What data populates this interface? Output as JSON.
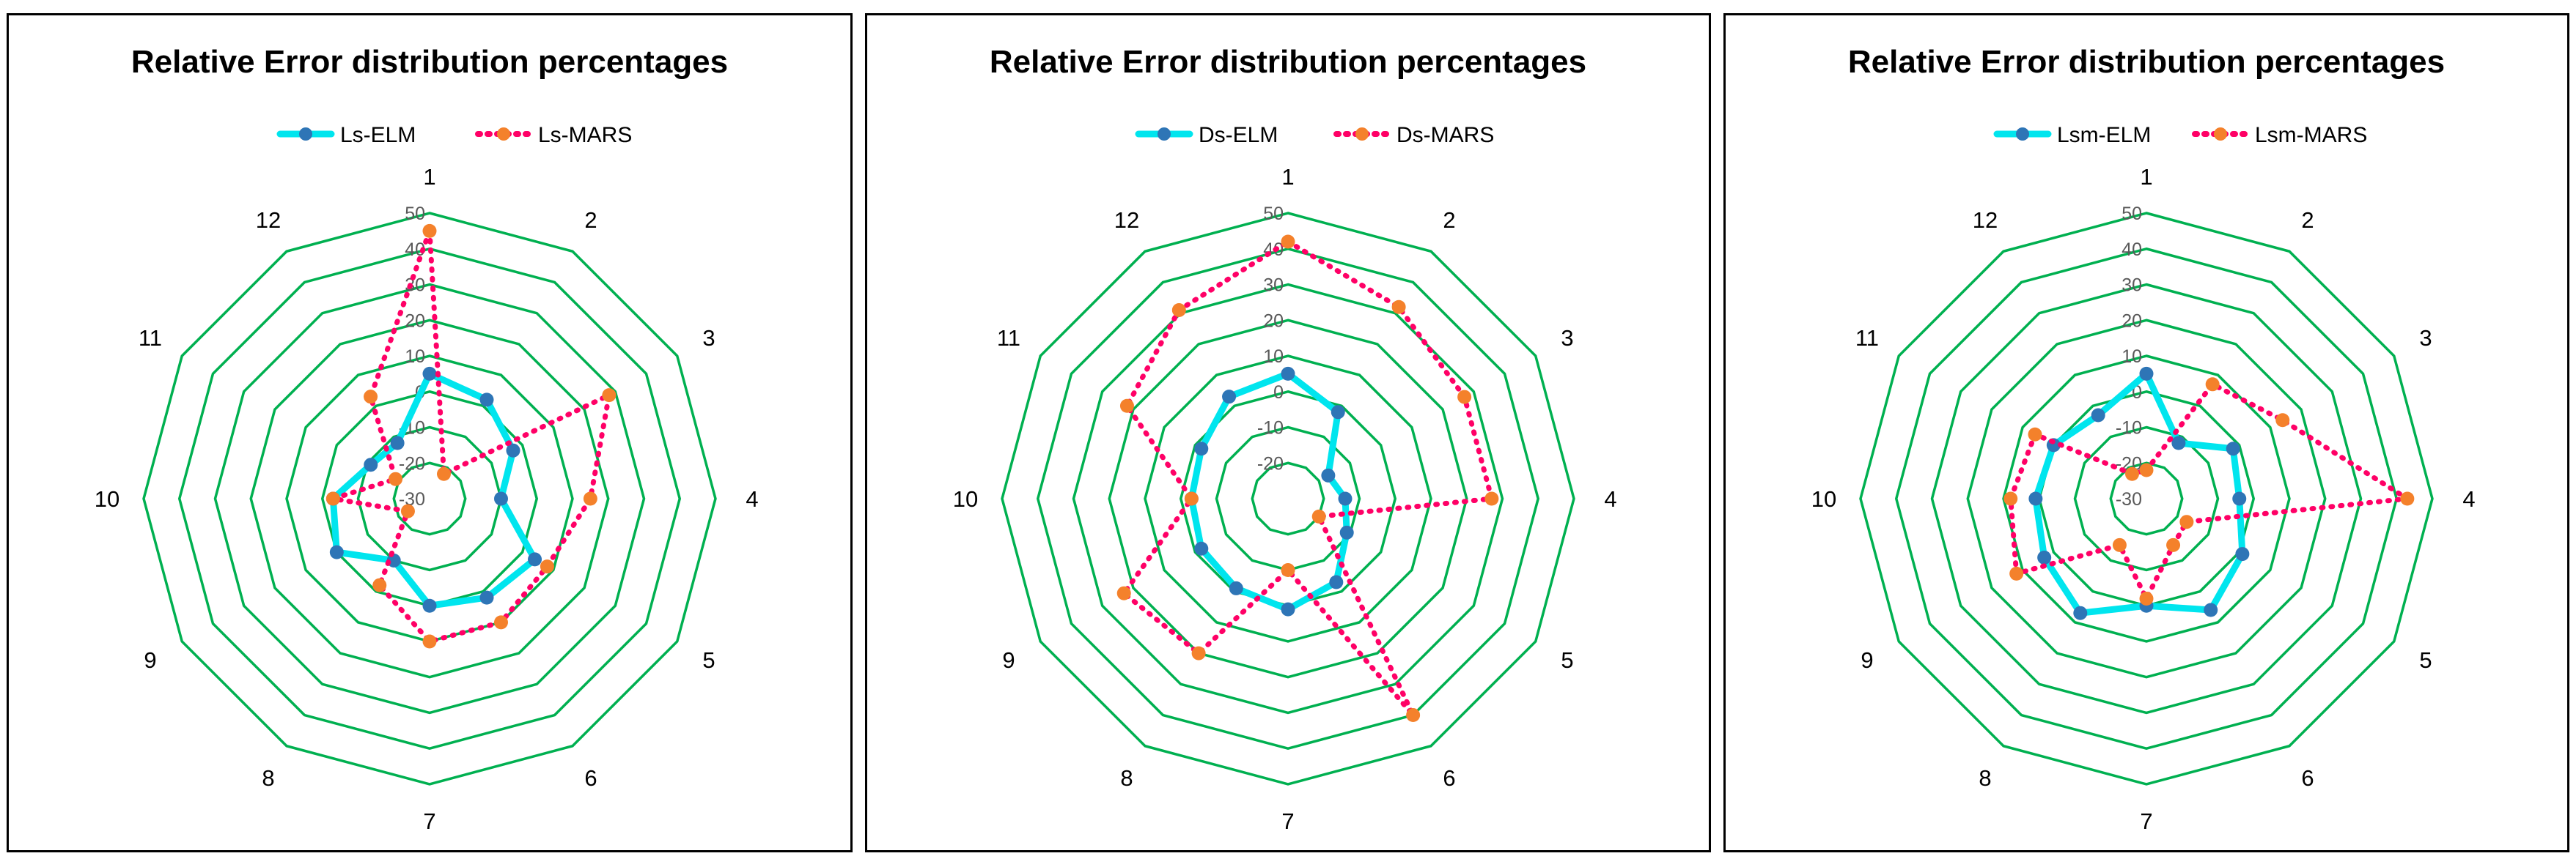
{
  "charts": [
    {
      "title": "Relative Error distribution percentages",
      "type": "radar",
      "categories": [
        "1",
        "2",
        "3",
        "4",
        "5",
        "6",
        "7",
        "8",
        "9",
        "10",
        "11",
        "12"
      ],
      "rlim": [
        -30,
        50
      ],
      "ticks": [
        "-30",
        "-20",
        "-10",
        "0",
        "10",
        "20",
        "30",
        "40",
        "50"
      ],
      "grid_color": "#00b050",
      "series": [
        {
          "name": "Ls-ELM",
          "color": "#00e5ee",
          "marker": "#2e75b6",
          "style": "solid",
          "values": [
            5,
            2,
            -3,
            -10,
            4,
            2,
            0,
            -10,
            0,
            -3,
            -11,
            -12
          ]
        },
        {
          "name": "Ls-MARS",
          "color": "#ff0066",
          "marker": "#f4812b",
          "style": "dotted",
          "values": [
            45,
            -22,
            28,
            15,
            8,
            10,
            10,
            -2,
            -23,
            -3,
            -19,
            3
          ]
        }
      ]
    },
    {
      "title": "Relative Error distribution percentages",
      "type": "radar",
      "categories": [
        "1",
        "2",
        "3",
        "4",
        "5",
        "6",
        "7",
        "8",
        "9",
        "10",
        "11",
        "12"
      ],
      "rlim": [
        -30,
        50
      ],
      "ticks": [
        "-20",
        "-10",
        "0",
        "10",
        "20",
        "30",
        "40",
        "50"
      ],
      "grid_color": "#00b050",
      "series": [
        {
          "name": "Ds-ELM",
          "color": "#00e5ee",
          "marker": "#2e75b6",
          "style": "solid",
          "values": [
            5,
            -2,
            -17,
            -14,
            -11,
            -3,
            1,
            -1,
            -2,
            -3,
            -2,
            3
          ]
        },
        {
          "name": "Ds-MARS",
          "color": "#ff0066",
          "marker": "#f4812b",
          "style": "dotted",
          "values": [
            42,
            32,
            27,
            27,
            -20,
            40,
            -10,
            20,
            23,
            -3,
            22,
            31
          ]
        }
      ]
    },
    {
      "title": "Relative Error distribution percentages",
      "type": "radar",
      "categories": [
        "1",
        "2",
        "3",
        "4",
        "5",
        "6",
        "7",
        "8",
        "9",
        "10",
        "11",
        "12"
      ],
      "rlim": [
        -30,
        50
      ],
      "ticks": [
        "-30",
        "-20",
        "-10",
        "0",
        "10",
        "20",
        "30",
        "40",
        "50"
      ],
      "grid_color": "#00b050",
      "series": [
        {
          "name": "Lsm-ELM",
          "color": "#00e5ee",
          "marker": "#2e75b6",
          "style": "solid",
          "values": [
            5,
            -12,
            -2,
            -4,
            1,
            6,
            0,
            7,
            3,
            1,
            0,
            -3
          ]
        },
        {
          "name": "Lsm-MARS",
          "color": "#ff0066",
          "marker": "#f4812b",
          "style": "dotted",
          "values": [
            -22,
            7,
            14,
            43,
            -17,
            -15,
            -2,
            -15,
            12,
            8,
            6,
            -22
          ]
        }
      ]
    }
  ]
}
